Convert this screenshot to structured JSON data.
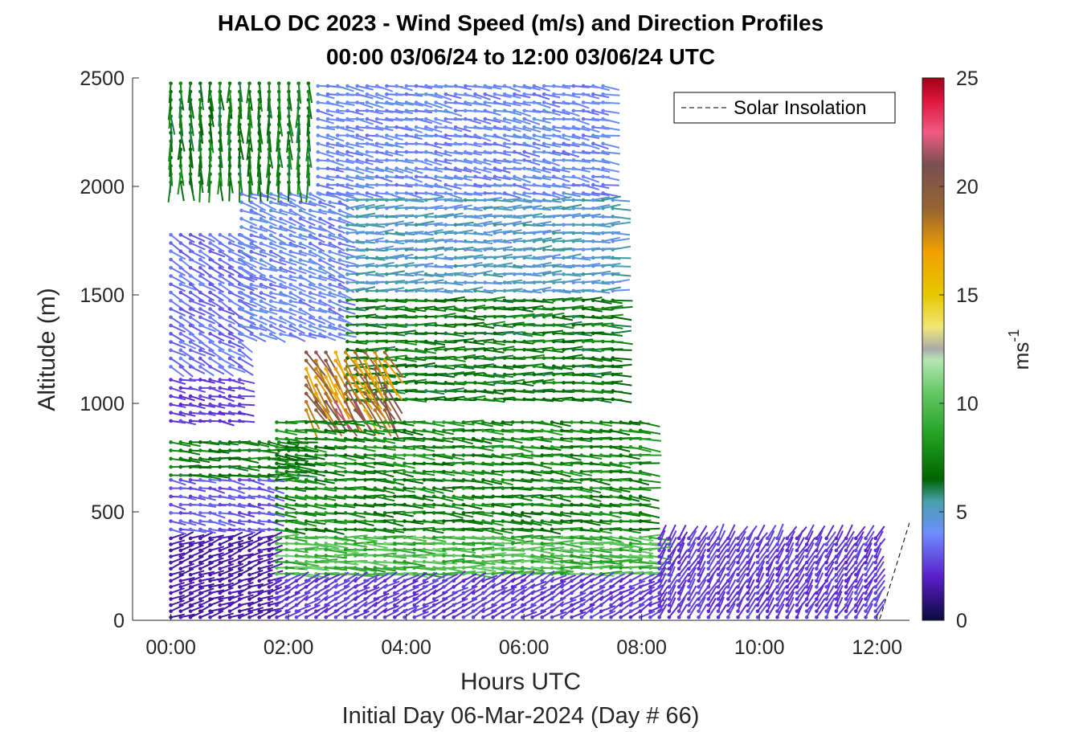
{
  "chart_data": {
    "type": "quiver",
    "title_line1": "HALO DC 2023 - Wind Speed (m/s) and Direction Profiles",
    "title_line2": "00:00 03/06/24 to 12:00 03/06/24  UTC",
    "xlabel": "Hours UTC",
    "xlabel2": "Initial Day 06-Mar-2024 (Day # 66)",
    "ylabel": "Altitude (m)",
    "xlim": [
      -0.65,
      12.55
    ],
    "ylim": [
      0,
      2500
    ],
    "xticks": [
      0,
      2,
      4,
      6,
      8,
      10,
      12
    ],
    "xtick_labels": [
      "00:00",
      "02:00",
      "04:00",
      "06:00",
      "08:00",
      "10:00",
      "12:00"
    ],
    "yticks": [
      0,
      500,
      1000,
      1500,
      2000,
      2500
    ],
    "ytick_labels": [
      "0",
      "500",
      "1000",
      "1500",
      "2000",
      "2500"
    ],
    "colorbar": {
      "label_base": "ms",
      "label_exp": "-1",
      "range": [
        0,
        25
      ],
      "ticks": [
        0,
        5,
        10,
        15,
        20,
        25
      ],
      "tick_labels": [
        "0",
        "5",
        "10",
        "15",
        "20",
        "25"
      ],
      "stops": [
        {
          "v": 0,
          "color": "#0a0a3c"
        },
        {
          "v": 2,
          "color": "#5a1ec8"
        },
        {
          "v": 4,
          "color": "#6e8cff"
        },
        {
          "v": 5.5,
          "color": "#46a0aa"
        },
        {
          "v": 6.5,
          "color": "#006400"
        },
        {
          "v": 8.5,
          "color": "#22a022"
        },
        {
          "v": 10.5,
          "color": "#64c864"
        },
        {
          "v": 12,
          "color": "#b4e6b4"
        },
        {
          "v": 12.5,
          "color": "#aaaaaa"
        },
        {
          "v": 13.5,
          "color": "#f0e678"
        },
        {
          "v": 15,
          "color": "#e6c800"
        },
        {
          "v": 17,
          "color": "#f0a000"
        },
        {
          "v": 19,
          "color": "#966432"
        },
        {
          "v": 21,
          "color": "#785050"
        },
        {
          "v": 22.5,
          "color": "#f05a82"
        },
        {
          "v": 24,
          "color": "#dc143c"
        },
        {
          "v": 25,
          "color": "#a00014"
        }
      ]
    },
    "legend": {
      "label": "Solar Insolation",
      "position": "top-right",
      "style": "dashed"
    },
    "series": [
      {
        "name": "Solar Insolation",
        "type": "line",
        "style": "dashed",
        "x": [
          -0.65,
          12.0,
          12.05,
          12.55
        ],
        "y": [
          0,
          0,
          10,
          450
        ]
      },
      {
        "name": "wind",
        "type": "quiver",
        "columns_time_step_h": 0.167,
        "regions": [
          {
            "x_range": [
              0.0,
              1.8
            ],
            "alt_range": [
              0,
              400
            ],
            "speed": 1.5,
            "dir_deg": 70
          },
          {
            "x_range": [
              0.0,
              1.8
            ],
            "alt_range": [
              400,
              650
            ],
            "speed": 3.0,
            "dir_deg": 100
          },
          {
            "x_range": [
              0.0,
              2.2
            ],
            "alt_range": [
              650,
              850
            ],
            "speed": 7.0,
            "dir_deg": 95
          },
          {
            "x_range": [
              0.0,
              1.2
            ],
            "alt_range": [
              900,
              1120
            ],
            "speed": 2.5,
            "dir_deg": 100
          },
          {
            "x_range": [
              0.0,
              1.2
            ],
            "alt_range": [
              1150,
              1800
            ],
            "speed": 3.5,
            "dir_deg": 120
          },
          {
            "x_range": [
              1.2,
              3.0
            ],
            "alt_range": [
              1300,
              2000
            ],
            "speed": 4.0,
            "dir_deg": 110
          },
          {
            "x_range": [
              0.0,
              2.5
            ],
            "alt_range": [
              2000,
              2500
            ],
            "speed": 7.0,
            "dir_deg": 178
          },
          {
            "x_range": [
              2.5,
              7.4
            ],
            "alt_range": [
              1950,
              2500
            ],
            "speed": 4.0,
            "dir_deg": 100
          },
          {
            "x_range": [
              3.0,
              7.6
            ],
            "alt_range": [
              1500,
              1950
            ],
            "speed": 5.0,
            "dir_deg": 88
          },
          {
            "x_range": [
              3.0,
              7.6
            ],
            "alt_range": [
              1000,
              1500
            ],
            "speed": 7.0,
            "dir_deg": 90
          },
          {
            "x_range": [
              2.3,
              3.8
            ],
            "alt_range": [
              950,
              1250
            ],
            "speed": 19.0,
            "dir_deg": 150
          },
          {
            "x_range": [
              1.8,
              8.0
            ],
            "alt_range": [
              400,
              950
            ],
            "speed": 7.5,
            "dir_deg": 95
          },
          {
            "x_range": [
              1.8,
              8.3
            ],
            "alt_range": [
              200,
              400
            ],
            "speed": 9.5,
            "dir_deg": 92
          },
          {
            "x_range": [
              1.8,
              8.3
            ],
            "alt_range": [
              0,
              200
            ],
            "speed": 2.5,
            "dir_deg": 60
          },
          {
            "x_range": [
              8.3,
              12.0
            ],
            "alt_range": [
              0,
              380
            ],
            "speed": 2.5,
            "dir_deg": 30
          }
        ]
      }
    ]
  }
}
